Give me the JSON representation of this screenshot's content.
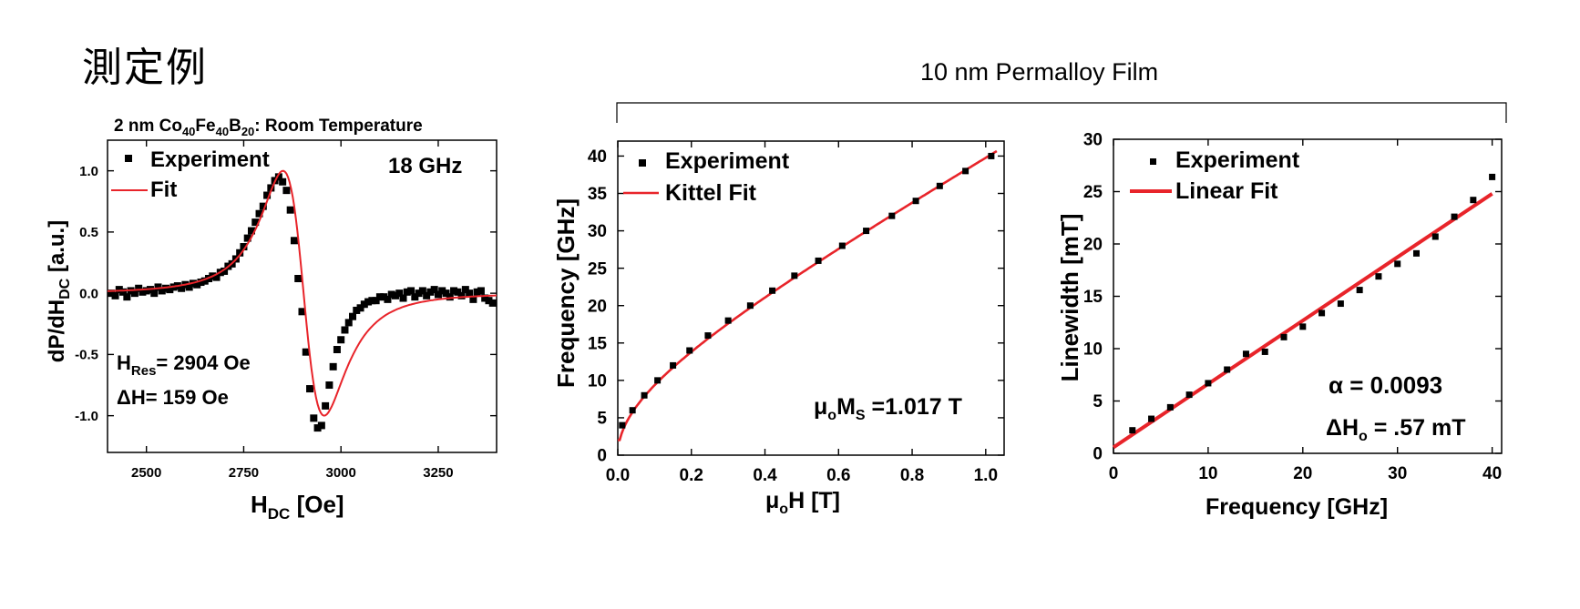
{
  "page": {
    "title": "測定例",
    "bracket_label": "10 nm Permalloy Film"
  },
  "chart_data": [
    {
      "type": "line",
      "title": {
        "pre": "2 nm Co",
        "s1": "40",
        "mid1": "Fe",
        "s2": "40",
        "mid2": "B",
        "s3": "20",
        "post": ": Room Temperature"
      },
      "xlabel": {
        "main": "H",
        "sub": "DC",
        "post": " [Oe]"
      },
      "ylabel": {
        "main": "dP/dH",
        "sub": "DC",
        "post": " [a.u.]"
      },
      "xlim": [
        2400,
        3400
      ],
      "ylim": [
        -1.3,
        1.25
      ],
      "xticks": [
        2500,
        2750,
        3000,
        3250
      ],
      "xtick_labels": [
        "2500",
        "2750",
        "3000",
        "3250"
      ],
      "yticks": [
        1.0,
        0.5,
        0.0,
        -0.5,
        -1.0
      ],
      "ytick_labels": [
        "1.0",
        "0.5",
        "0.0",
        "-0.5",
        "-1.0"
      ],
      "legend": [
        "Experiment",
        "Fit"
      ],
      "annotation": "18 GHz",
      "result1": {
        "main": "H",
        "sub": "Res",
        "post": "= 2904 Oe"
      },
      "result2": "ΔH= 159 Oe",
      "fit_model": {
        "h_res": 2904,
        "delta_h": 159,
        "amplitude": 1.0
      },
      "series": [
        {
          "name": "Experiment",
          "x": [
            2410,
            2420,
            2430,
            2440,
            2450,
            2460,
            2470,
            2480,
            2490,
            2500,
            2510,
            2520,
            2530,
            2540,
            2550,
            2560,
            2570,
            2580,
            2590,
            2600,
            2610,
            2620,
            2630,
            2640,
            2650,
            2660,
            2670,
            2680,
            2690,
            2700,
            2710,
            2720,
            2730,
            2740,
            2750,
            2760,
            2770,
            2780,
            2790,
            2800,
            2810,
            2820,
            2830,
            2840,
            2850,
            2860,
            2870,
            2880,
            2890,
            2900,
            2910,
            2920,
            2930,
            2940,
            2950,
            2960,
            2970,
            2980,
            2990,
            3000,
            3010,
            3020,
            3030,
            3040,
            3050,
            3060,
            3070,
            3080,
            3090,
            3100,
            3110,
            3120,
            3130,
            3140,
            3150,
            3160,
            3170,
            3180,
            3190,
            3200,
            3210,
            3220,
            3230,
            3240,
            3250,
            3260,
            3270,
            3280,
            3290,
            3300,
            3310,
            3320,
            3330,
            3340,
            3350,
            3360,
            3370,
            3380,
            3390
          ],
          "y": [
            0.0,
            -0.02,
            0.03,
            0.01,
            -0.03,
            0.02,
            0.0,
            0.04,
            0.01,
            0.02,
            0.03,
            0.0,
            0.05,
            0.02,
            0.04,
            0.03,
            0.05,
            0.06,
            0.04,
            0.07,
            0.05,
            0.08,
            0.07,
            0.09,
            0.1,
            0.12,
            0.14,
            0.13,
            0.17,
            0.18,
            0.22,
            0.24,
            0.28,
            0.33,
            0.38,
            0.45,
            0.51,
            0.58,
            0.65,
            0.71,
            0.8,
            0.86,
            0.92,
            0.95,
            0.91,
            0.84,
            0.68,
            0.43,
            0.12,
            -0.15,
            -0.48,
            -0.78,
            -1.02,
            -1.1,
            -1.08,
            -0.92,
            -0.75,
            -0.6,
            -0.46,
            -0.38,
            -0.3,
            -0.24,
            -0.19,
            -0.14,
            -0.12,
            -0.09,
            -0.07,
            -0.06,
            -0.06,
            -0.03,
            -0.03,
            -0.05,
            -0.01,
            -0.02,
            0.0,
            -0.04,
            0.01,
            0.02,
            -0.03,
            0.0,
            0.02,
            -0.02,
            0.01,
            0.03,
            -0.01,
            0.02,
            0.0,
            -0.03,
            0.02,
            0.01,
            -0.02,
            0.03,
            0.0,
            -0.05,
            0.01,
            0.02,
            -0.04,
            -0.06,
            -0.08
          ]
        }
      ]
    },
    {
      "type": "line",
      "xlabel": {
        "main": "μ",
        "sub": "o",
        "post": "H [T]"
      },
      "ylabel": "Frequency [GHz]",
      "xlim": [
        0.0,
        1.05
      ],
      "ylim": [
        0,
        42
      ],
      "xticks": [
        0.0,
        0.2,
        0.4,
        0.6,
        0.8,
        1.0
      ],
      "xtick_labels": [
        "0.0",
        "0.2",
        "0.4",
        "0.6",
        "0.8",
        "1.0"
      ],
      "yticks": [
        0,
        5,
        10,
        15,
        20,
        25,
        30,
        35,
        40
      ],
      "ytick_labels": [
        "0",
        "5",
        "10",
        "15",
        "20",
        "25",
        "30",
        "35",
        "40"
      ],
      "legend": [
        "Experiment",
        "Kittel Fit"
      ],
      "annotation": {
        "pre": "μ",
        "s1": "o",
        "mid": "M",
        "s2": "S",
        "post": " =1.017 T"
      },
      "fit_model": {
        "ms_tesla": 1.017,
        "gamma_ghz_per_t": 28.0
      },
      "series": [
        {
          "name": "Experiment",
          "x": [
            0.012,
            0.04,
            0.072,
            0.108,
            0.15,
            0.195,
            0.245,
            0.3,
            0.36,
            0.42,
            0.48,
            0.545,
            0.61,
            0.675,
            0.745,
            0.81,
            0.875,
            0.945,
            1.015
          ],
          "y": [
            4.0,
            6.0,
            8.0,
            10.0,
            12.0,
            14.0,
            16.0,
            18.0,
            20.0,
            22.0,
            24.0,
            26.0,
            28.0,
            30.0,
            32.0,
            34.0,
            36.0,
            38.0,
            40.0
          ]
        }
      ]
    },
    {
      "type": "scatter",
      "xlabel": "Frequency [GHz]",
      "ylabel": "Linewidth [mT]",
      "xlim": [
        0,
        41
      ],
      "ylim": [
        0,
        30
      ],
      "xticks": [
        0,
        10,
        20,
        30,
        40
      ],
      "xtick_labels": [
        "0",
        "10",
        "20",
        "30",
        "40"
      ],
      "yticks": [
        0,
        5,
        10,
        15,
        20,
        25,
        30
      ],
      "ytick_labels": [
        "0",
        "5",
        "10",
        "15",
        "20",
        "25",
        "30"
      ],
      "legend": [
        "Experiment",
        "Linear Fit"
      ],
      "annotation1": "α = 0.0093",
      "annotation2": {
        "pre": "ΔH",
        "sub": "o",
        "post": " = .57 mT"
      },
      "fit_line": {
        "x": [
          0,
          40
        ],
        "y": [
          0.57,
          24.8
        ]
      },
      "series": [
        {
          "name": "Experiment",
          "x": [
            2,
            4,
            6,
            8,
            10,
            12,
            14,
            16,
            18,
            20,
            22,
            24,
            26,
            28,
            30,
            32,
            34,
            36,
            38,
            40
          ],
          "y": [
            2.2,
            3.3,
            4.4,
            5.6,
            6.7,
            8.0,
            9.5,
            9.7,
            11.1,
            12.1,
            13.4,
            14.3,
            15.6,
            16.9,
            18.1,
            19.1,
            20.7,
            22.6,
            24.2,
            26.4
          ]
        }
      ]
    }
  ]
}
